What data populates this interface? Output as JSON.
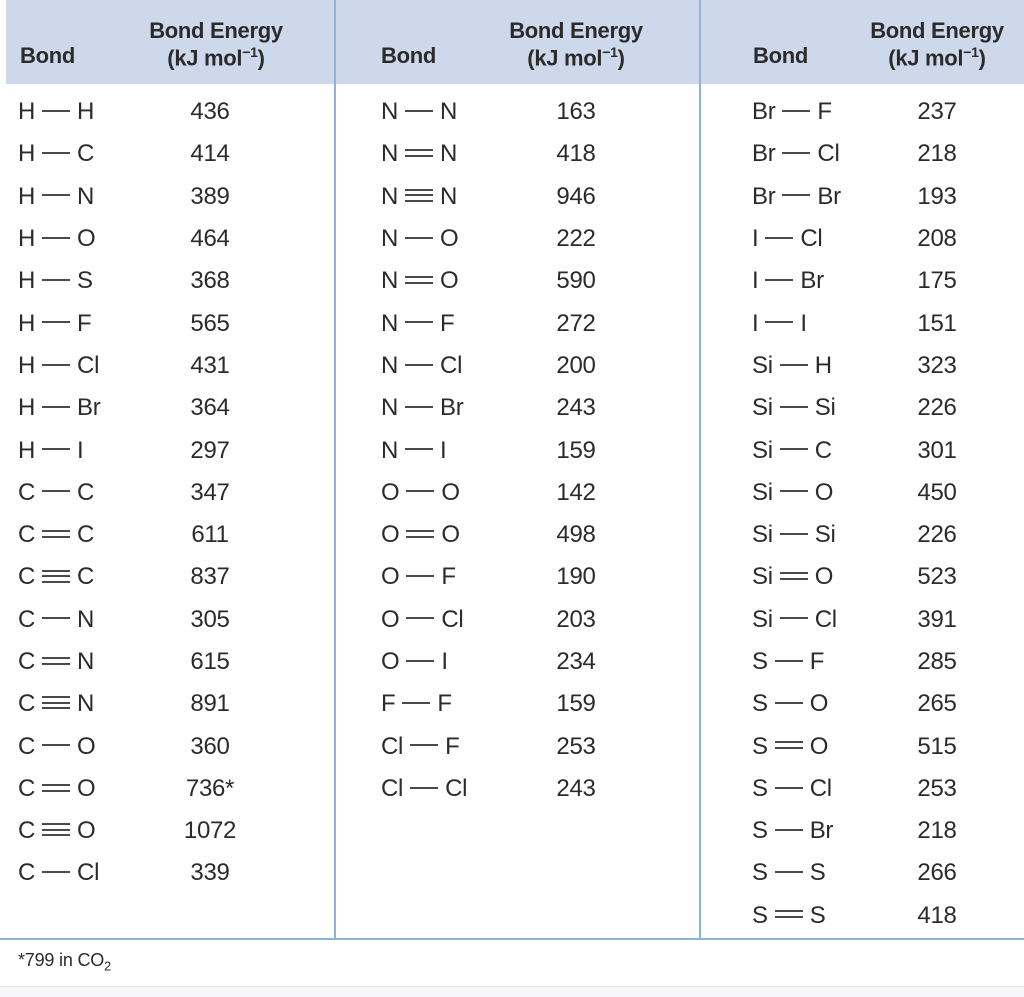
{
  "colors": {
    "header_bg": "#cdd9eb",
    "rule_blue": "#8fb2da",
    "text": "#2b2b2b",
    "strip_bg": "#f7f7f9"
  },
  "table": {
    "footnote_pre": "*799 in CO",
    "footnote_sub": "2",
    "columns": [
      {
        "header": {
          "bond": "Bond",
          "energy_line1": "Bond Energy",
          "energy_unit_pre": "(kJ mol",
          "energy_unit_sup": "−1",
          "energy_unit_post": ")"
        },
        "rows": [
          {
            "left": "H",
            "bond": "single",
            "right": "H",
            "value": "436"
          },
          {
            "left": "H",
            "bond": "single",
            "right": "C",
            "value": "414"
          },
          {
            "left": "H",
            "bond": "single",
            "right": "N",
            "value": "389"
          },
          {
            "left": "H",
            "bond": "single",
            "right": "O",
            "value": "464"
          },
          {
            "left": "H",
            "bond": "single",
            "right": "S",
            "value": "368"
          },
          {
            "left": "H",
            "bond": "single",
            "right": "F",
            "value": "565"
          },
          {
            "left": "H",
            "bond": "single",
            "right": "Cl",
            "value": "431"
          },
          {
            "left": "H",
            "bond": "single",
            "right": "Br",
            "value": "364"
          },
          {
            "left": "H",
            "bond": "single",
            "right": "I",
            "value": "297"
          },
          {
            "left": "C",
            "bond": "single",
            "right": "C",
            "value": "347"
          },
          {
            "left": "C",
            "bond": "double",
            "right": "C",
            "value": "611"
          },
          {
            "left": "C",
            "bond": "triple",
            "right": "C",
            "value": "837"
          },
          {
            "left": "C",
            "bond": "single",
            "right": "N",
            "value": "305"
          },
          {
            "left": "C",
            "bond": "double",
            "right": "N",
            "value": "615"
          },
          {
            "left": "C",
            "bond": "triple",
            "right": "N",
            "value": "891"
          },
          {
            "left": "C",
            "bond": "single",
            "right": "O",
            "value": "360"
          },
          {
            "left": "C",
            "bond": "double",
            "right": "O",
            "value": "736*"
          },
          {
            "left": "C",
            "bond": "triple",
            "right": "O",
            "value": "1072"
          },
          {
            "left": "C",
            "bond": "single",
            "right": "Cl",
            "value": "339"
          }
        ]
      },
      {
        "header": {
          "bond": "Bond",
          "energy_line1": "Bond Energy",
          "energy_unit_pre": "(kJ mol",
          "energy_unit_sup": "−1",
          "energy_unit_post": ")"
        },
        "rows": [
          {
            "left": "N",
            "bond": "single",
            "right": "N",
            "value": "163"
          },
          {
            "left": "N",
            "bond": "double",
            "right": "N",
            "value": "418"
          },
          {
            "left": "N",
            "bond": "triple",
            "right": "N",
            "value": "946"
          },
          {
            "left": "N",
            "bond": "single",
            "right": "O",
            "value": "222"
          },
          {
            "left": "N",
            "bond": "double",
            "right": "O",
            "value": "590"
          },
          {
            "left": "N",
            "bond": "single",
            "right": "F",
            "value": "272"
          },
          {
            "left": "N",
            "bond": "single",
            "right": "Cl",
            "value": "200"
          },
          {
            "left": "N",
            "bond": "single",
            "right": "Br",
            "value": "243"
          },
          {
            "left": "N",
            "bond": "single",
            "right": "I",
            "value": "159"
          },
          {
            "left": "O",
            "bond": "single",
            "right": "O",
            "value": "142"
          },
          {
            "left": "O",
            "bond": "double",
            "right": "O",
            "value": "498"
          },
          {
            "left": "O",
            "bond": "single",
            "right": "F",
            "value": "190"
          },
          {
            "left": "O",
            "bond": "single",
            "right": "Cl",
            "value": "203"
          },
          {
            "left": "O",
            "bond": "single",
            "right": "I",
            "value": "234"
          },
          {
            "left": "F",
            "bond": "single",
            "right": "F",
            "value": "159"
          },
          {
            "left": "Cl",
            "bond": "single",
            "right": "F",
            "value": "253"
          },
          {
            "left": "Cl",
            "bond": "single",
            "right": "Cl",
            "value": "243"
          }
        ]
      },
      {
        "header": {
          "bond": "Bond",
          "energy_line1": "Bond Energy",
          "energy_unit_pre": "(kJ mol",
          "energy_unit_sup": "−1",
          "energy_unit_post": ")"
        },
        "rows": [
          {
            "left": "Br",
            "bond": "single",
            "right": "F",
            "value": "237"
          },
          {
            "left": "Br",
            "bond": "single",
            "right": "Cl",
            "value": "218"
          },
          {
            "left": "Br",
            "bond": "single",
            "right": "Br",
            "value": "193"
          },
          {
            "left": "I",
            "bond": "single",
            "right": "Cl",
            "value": "208"
          },
          {
            "left": "I",
            "bond": "single",
            "right": "Br",
            "value": "175"
          },
          {
            "left": "I",
            "bond": "single",
            "right": "I",
            "value": "151"
          },
          {
            "left": "Si",
            "bond": "single",
            "right": "H",
            "value": "323"
          },
          {
            "left": "Si",
            "bond": "single",
            "right": "Si",
            "value": "226"
          },
          {
            "left": "Si",
            "bond": "single",
            "right": "C",
            "value": "301"
          },
          {
            "left": "Si",
            "bond": "single",
            "right": "O",
            "value": "450"
          },
          {
            "left": "Si",
            "bond": "single",
            "right": "Si",
            "value": "226"
          },
          {
            "left": "Si",
            "bond": "double",
            "right": "O",
            "value": "523"
          },
          {
            "left": "Si",
            "bond": "single",
            "right": "Cl",
            "value": "391"
          },
          {
            "left": "S",
            "bond": "single",
            "right": "F",
            "value": "285"
          },
          {
            "left": "S",
            "bond": "single",
            "right": "O",
            "value": "265"
          },
          {
            "left": "S",
            "bond": "double",
            "right": "O",
            "value": "515"
          },
          {
            "left": "S",
            "bond": "single",
            "right": "Cl",
            "value": "253"
          },
          {
            "left": "S",
            "bond": "single",
            "right": "Br",
            "value": "218"
          },
          {
            "left": "S",
            "bond": "single",
            "right": "S",
            "value": "266"
          },
          {
            "left": "S",
            "bond": "double",
            "right": "S",
            "value": "418"
          }
        ]
      }
    ]
  }
}
